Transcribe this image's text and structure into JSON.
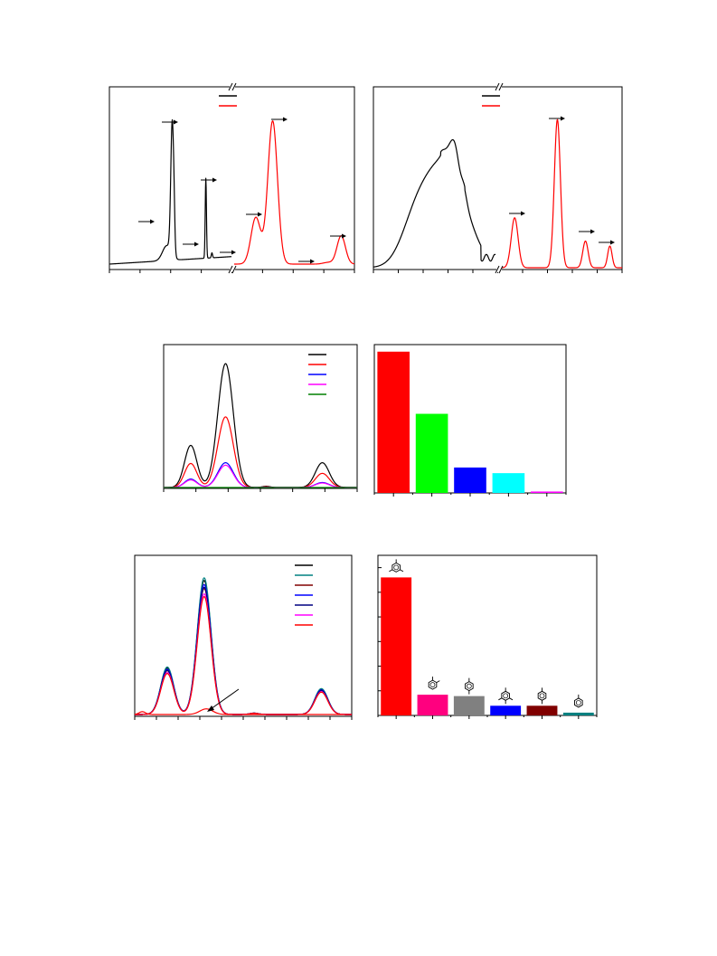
{
  "chart_data": [
    {
      "id": "panel-a",
      "type": "line",
      "axis_break": true,
      "legend": "top-center",
      "colors": {
        "left": "#000000",
        "right": "#ff0000"
      },
      "segments": {
        "left": {
          "peaks": [
            [
              0.47,
              0.035,
              0.09
            ],
            [
              0.515,
              0.012,
              0.8
            ],
            [
              0.53,
              0.006,
              0.1
            ],
            [
              0.79,
              0.005,
              0.48
            ],
            [
              0.84,
              0.005,
              0.03
            ]
          ]
        },
        "right": {
          "peaks": [
            [
              0.18,
              0.04,
              0.28
            ],
            [
              0.32,
              0.04,
              0.86
            ],
            [
              0.78,
              0.04,
              0.01
            ],
            [
              0.89,
              0.035,
              0.17
            ]
          ]
        }
      },
      "arrows": [
        [
          0.25,
          0.69,
          "right"
        ],
        [
          0.38,
          0.18,
          "right"
        ],
        [
          0.51,
          0.78,
          "right"
        ],
        [
          0.56,
          0.48,
          "right"
        ],
        [
          0.66,
          0.86,
          "right"
        ],
        [
          0.82,
          0.07,
          "right"
        ],
        [
          0.96,
          0.68,
          "right"
        ],
        [
          0.98,
          0.7,
          "up"
        ],
        [
          1.0,
          0.73,
          "left"
        ]
      ],
      "series": [
        {
          "color": "#000000"
        },
        {
          "color": "#ff0000"
        }
      ]
    },
    {
      "id": "panel-b",
      "type": "line",
      "axis_break": true,
      "legend": "top-center",
      "series": [
        {
          "color": "#000000"
        },
        {
          "color": "#ff0000"
        }
      ]
    },
    {
      "id": "panel-c",
      "type": "line",
      "legend": "top-right",
      "series": [
        {
          "color": "#000000",
          "scale": 1.0
        },
        {
          "color": "#ff0000",
          "scale": 0.57
        },
        {
          "color": "#0000ff",
          "scale": 0.2
        },
        {
          "color": "#ff00ff",
          "scale": 0.18
        },
        {
          "color": "#008000",
          "scale": 0.0
        }
      ],
      "peaks": [
        [
          0.14,
          0.032,
          0.34
        ],
        [
          0.32,
          0.04,
          1.0
        ],
        [
          0.53,
          0.02,
          0.01
        ],
        [
          0.82,
          0.036,
          0.2
        ]
      ]
    },
    {
      "id": "panel-d",
      "type": "bar",
      "values": [
        100,
        56,
        18,
        14,
        1
      ],
      "ylim": [
        0,
        105
      ],
      "colors": [
        "#ff0000",
        "#00ff00",
        "#0000ff",
        "#00ffff",
        "#ff00ff"
      ]
    },
    {
      "id": "panel-e",
      "type": "line",
      "legend": "top-right",
      "series": [
        {
          "color": "#000000",
          "scale": 1.0
        },
        {
          "color": "#008080",
          "scale": 1.02
        },
        {
          "color": "#800000",
          "scale": 0.94
        },
        {
          "color": "#0000ff",
          "scale": 0.97
        },
        {
          "color": "#000080",
          "scale": 0.95
        },
        {
          "color": "#ff00ff",
          "scale": 0.9
        },
        {
          "color": "#ff0000",
          "scale": 0.88
        }
      ],
      "peaks": [
        [
          0.15,
          0.03,
          0.33
        ],
        [
          0.32,
          0.032,
          0.95
        ],
        [
          0.55,
          0.02,
          0.01
        ],
        [
          0.86,
          0.03,
          0.18
        ]
      ],
      "background_peaks": [
        [
          0.035,
          0.015,
          0.02
        ],
        [
          0.33,
          0.03,
          0.04
        ]
      ],
      "background_color": "#ff0000",
      "annotations": [
        {
          "from": [
            0.48,
            0.33
          ],
          "to": [
            0.32,
            0.95
          ]
        }
      ]
    },
    {
      "id": "panel-f",
      "type": "bar",
      "values": [
        100,
        15,
        14,
        7,
        7,
        2
      ],
      "ylim": [
        0,
        116
      ],
      "colors": [
        "#ff0000",
        "#ff007f",
        "#808080",
        "#0000ff",
        "#800000",
        "#008080"
      ]
    }
  ]
}
